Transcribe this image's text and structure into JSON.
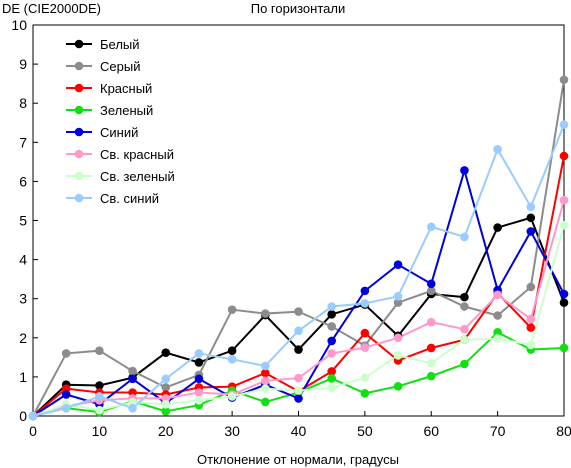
{
  "chart_data": {
    "type": "line",
    "title": "По горизонтали",
    "xlabel": "Отклонение от нормали, градусы",
    "ylabel": "DE (CIE2000DE)",
    "xlim": [
      0,
      80
    ],
    "ylim": [
      0,
      10
    ],
    "x_ticks": [
      0,
      10,
      20,
      30,
      40,
      50,
      60,
      70,
      80
    ],
    "y_ticks": [
      0,
      1,
      2,
      3,
      4,
      5,
      6,
      7,
      8,
      9,
      10
    ],
    "grid": false,
    "legend_position": "top-left",
    "x": [
      0,
      5,
      10,
      15,
      20,
      25,
      30,
      35,
      40,
      45,
      50,
      55,
      60,
      65,
      70,
      75,
      80
    ],
    "series": [
      {
        "name": "Белый",
        "color": "#000000",
        "values": [
          0,
          0.8,
          0.78,
          0.98,
          1.62,
          1.37,
          1.67,
          2.58,
          1.7,
          2.6,
          2.85,
          2.05,
          3.12,
          3.04,
          4.82,
          5.07,
          2.9
        ]
      },
      {
        "name": "Серый",
        "color": "#8c8c8c",
        "values": [
          0,
          1.6,
          1.67,
          1.15,
          0.73,
          1.05,
          2.72,
          2.62,
          2.67,
          2.29,
          1.8,
          2.9,
          3.2,
          2.8,
          2.57,
          3.3,
          8.6
        ]
      },
      {
        "name": "Красный",
        "color": "#ff0000",
        "values": [
          0,
          0.7,
          0.6,
          0.6,
          0.55,
          0.73,
          0.75,
          1.1,
          0.63,
          1.14,
          2.12,
          1.42,
          1.74,
          1.95,
          3.14,
          2.26,
          6.65
        ]
      },
      {
        "name": "Зеленый",
        "color": "#10e010",
        "values": [
          0,
          0.2,
          0.1,
          0.38,
          0.12,
          0.28,
          0.65,
          0.36,
          0.6,
          0.96,
          0.58,
          0.76,
          1.02,
          1.33,
          2.14,
          1.7,
          1.74
        ]
      },
      {
        "name": "Синий",
        "color": "#0000dd",
        "values": [
          0,
          0.55,
          0.3,
          0.95,
          0.33,
          0.95,
          0.47,
          0.8,
          0.45,
          1.92,
          3.2,
          3.87,
          3.38,
          6.28,
          3.22,
          4.72,
          3.12
        ]
      },
      {
        "name": "Св. красный",
        "color": "#ff99cc",
        "values": [
          0,
          0.25,
          0.4,
          0.45,
          0.45,
          0.6,
          0.55,
          0.9,
          0.97,
          1.6,
          1.75,
          2.0,
          2.4,
          2.22,
          3.1,
          2.48,
          5.52
        ]
      },
      {
        "name": "Св. зеленый",
        "color": "#ccffcc",
        "values": [
          0,
          0.3,
          0.15,
          0.35,
          0.3,
          0.4,
          0.5,
          0.7,
          0.65,
          0.72,
          0.98,
          1.55,
          1.35,
          1.95,
          1.98,
          1.82,
          4.88
        ]
      },
      {
        "name": "Св. синий",
        "color": "#99ccff",
        "values": [
          0,
          0.2,
          0.5,
          0.2,
          0.95,
          1.6,
          1.45,
          1.28,
          2.18,
          2.8,
          2.88,
          3.06,
          4.84,
          4.58,
          6.82,
          5.35,
          7.45
        ]
      }
    ]
  }
}
